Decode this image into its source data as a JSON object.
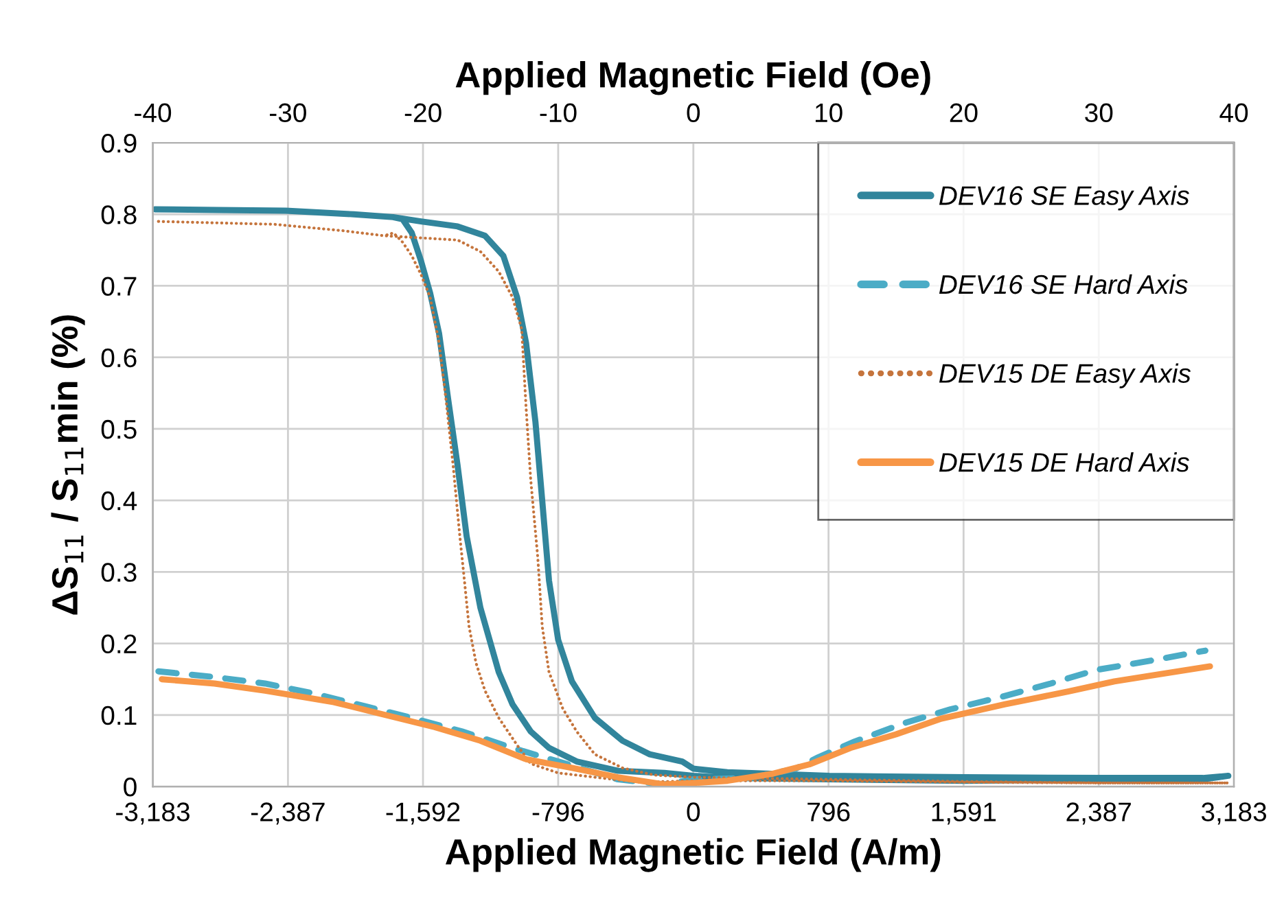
{
  "chart_data": {
    "type": "line",
    "xlabel": "Applied Magnetic Field (A/m)",
    "x2label": "Applied Magnetic Field (Oe)",
    "ylabel": "ΔS$_{11}$ / S$_{11}$min (%)",
    "xlim": [
      -3183,
      3183
    ],
    "xticks": [
      {
        "value": -3183,
        "label": "-3,183"
      },
      {
        "value": -2387,
        "label": "-2,387"
      },
      {
        "value": -1592,
        "label": "-1,592"
      },
      {
        "value": -796,
        "label": "-796"
      },
      0,
      796,
      {
        "value": 1591,
        "label": "1,591"
      },
      {
        "value": 2387,
        "label": "2,387"
      },
      {
        "value": 3183,
        "label": "3,183"
      }
    ],
    "x2lim": [
      -40,
      40
    ],
    "x2ticks": [
      -40,
      -30,
      -20,
      -10,
      0,
      10,
      20,
      30,
      40
    ],
    "ylim": [
      0,
      0.9
    ],
    "yticks": [
      0,
      0.1,
      0.2,
      0.3,
      0.4,
      0.5,
      0.6,
      0.7,
      0.8,
      0.9
    ],
    "grid": true,
    "legend": "top right",
    "marker": "none",
    "series": [
      {
        "name": "DEV16 SE Easy Axis",
        "color": "#31859c",
        "line_style": "solid",
        "x": [
          -3170,
          -2800,
          -2400,
          -2000,
          -1768,
          -1604,
          -1388,
          -1227,
          -1119,
          -1038,
          -985,
          -930,
          -890,
          -850,
          -796,
          -715,
          -580,
          -417,
          -256,
          -66,
          0,
          200,
          800,
          1600,
          2400,
          3000,
          3150,
          3000,
          2400,
          1600,
          800,
          200,
          0,
          -171,
          -444,
          -687,
          -850,
          -958,
          -1065,
          -1146,
          -1254,
          -1335,
          -1389,
          -1443,
          -1497,
          -1550,
          -1604,
          -1658,
          -1712,
          -1768
        ],
        "values": [
          0.807,
          0.806,
          0.805,
          0.8,
          0.796,
          0.79,
          0.783,
          0.77,
          0.742,
          0.684,
          0.62,
          0.51,
          0.4,
          0.288,
          0.205,
          0.147,
          0.096,
          0.064,
          0.045,
          0.035,
          0.025,
          0.02,
          0.015,
          0.013,
          0.012,
          0.012,
          0.015,
          0.01,
          0.01,
          0.008,
          0.01,
          0.012,
          0.015,
          0.019,
          0.022,
          0.035,
          0.054,
          0.077,
          0.115,
          0.16,
          0.25,
          0.35,
          0.45,
          0.54,
          0.633,
          0.69,
          0.735,
          0.774,
          0.793,
          0.796
        ]
      },
      {
        "name": "DEV16 SE Hard Axis",
        "color": "#4bacc6",
        "line_style": "dashed",
        "x": [
          -3150,
          -2819,
          -2522,
          -2252,
          -1928,
          -1658,
          -1362,
          -1065,
          -796,
          -444,
          -175,
          0,
          335,
          603,
          737,
          951,
          1246,
          1514,
          1809,
          2104,
          2372,
          2693,
          3015
        ],
        "values": [
          0.161,
          0.153,
          0.144,
          0.131,
          0.112,
          0.096,
          0.077,
          0.054,
          0.035,
          0.01,
          0.003,
          0.01,
          0.012,
          0.025,
          0.041,
          0.063,
          0.089,
          0.108,
          0.125,
          0.144,
          0.163,
          0.176,
          0.19
        ]
      },
      {
        "name": "DEV15 DE Easy Axis",
        "color": "#c5743c",
        "line_style": "dotted",
        "x": [
          -3150,
          -2468,
          -2063,
          -1820,
          -1604,
          -1388,
          -1254,
          -1146,
          -1065,
          -1011,
          -985,
          -958,
          -916,
          -890,
          -850,
          -769,
          -687,
          -580,
          -417,
          -230,
          0,
          800,
          1600,
          2400,
          3150,
          2400,
          1600,
          800,
          0,
          -309,
          -580,
          -796,
          -958,
          -1038,
          -1146,
          -1227,
          -1280,
          -1321,
          -1348,
          -1375,
          -1415,
          -1456,
          -1497,
          -1550,
          -1604,
          -1658,
          -1712,
          -1766,
          -1820
        ],
        "values": [
          0.79,
          0.786,
          0.777,
          0.77,
          0.767,
          0.764,
          0.748,
          0.72,
          0.684,
          0.64,
          0.53,
          0.43,
          0.32,
          0.224,
          0.16,
          0.109,
          0.077,
          0.045,
          0.026,
          0.016,
          0.013,
          0.01,
          0.007,
          0.005,
          0.005,
          0.005,
          0.006,
          0.008,
          0.008,
          0.006,
          0.013,
          0.019,
          0.032,
          0.058,
          0.096,
          0.134,
          0.173,
          0.224,
          0.288,
          0.35,
          0.45,
          0.54,
          0.62,
          0.684,
          0.716,
          0.742,
          0.761,
          0.774,
          0.77
        ]
      },
      {
        "name": "DEV15 DE Hard Axis",
        "color": "#f79646",
        "line_style": "solid",
        "x": [
          -3130,
          -2819,
          -2522,
          -2117,
          -1847,
          -1523,
          -1254,
          -983,
          -715,
          -444,
          -175,
          0,
          201,
          469,
          683,
          925,
          1193,
          1461,
          1836,
          2211,
          2479,
          2747,
          3042
        ],
        "values": [
          0.15,
          0.144,
          0.134,
          0.118,
          0.102,
          0.083,
          0.064,
          0.038,
          0.026,
          0.013,
          0.003,
          0.005,
          0.008,
          0.018,
          0.031,
          0.054,
          0.073,
          0.095,
          0.115,
          0.133,
          0.147,
          0.157,
          0.168
        ]
      }
    ]
  }
}
